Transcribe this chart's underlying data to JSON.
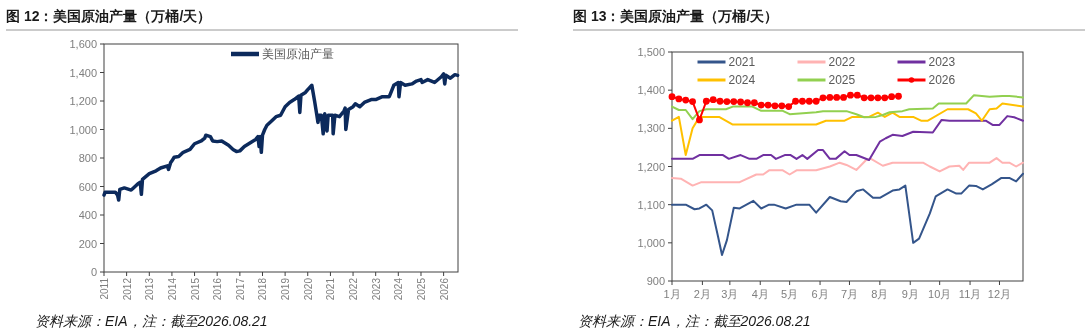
{
  "chart_data": [
    {
      "type": "line",
      "title": "图 12：美国原油产量（万桶/天）",
      "annotations": [
        "资料来源：EIA，注：截至2026.08.21"
      ],
      "legend": "top",
      "xlim": [
        "2011-01-01",
        "2026-08-21"
      ],
      "ylim": [
        0,
        1600
      ],
      "xticks": [
        {
          "value": "2011-01-01",
          "label": "2011"
        },
        {
          "value": "2012-01-01",
          "label": "2012"
        },
        {
          "value": "2013-01-01",
          "label": "2013"
        },
        {
          "value": "2014-01-01",
          "label": "2014"
        },
        {
          "value": "2015-01-01",
          "label": "2015"
        },
        {
          "value": "2016-01-01",
          "label": "2016"
        },
        {
          "value": "2017-01-01",
          "label": "2017"
        },
        {
          "value": "2018-01-01",
          "label": "2018"
        },
        {
          "value": "2019-01-01",
          "label": "2019"
        },
        {
          "value": "2020-01-01",
          "label": "2020"
        },
        {
          "value": "2021-01-01",
          "label": "2021"
        },
        {
          "value": "2022-01-01",
          "label": "2022"
        },
        {
          "value": "2023-01-01",
          "label": "2023"
        },
        {
          "value": "2024-01-01",
          "label": "2024"
        },
        {
          "value": "2025-01-01",
          "label": "2025"
        },
        {
          "value": "2026-01-01",
          "label": "2026"
        }
      ],
      "yticks": [
        0,
        200,
        400,
        600,
        800,
        {
          "value": 1000,
          "label": "1,000"
        },
        {
          "value": 1200,
          "label": "1,200"
        },
        {
          "value": 1400,
          "label": "1,400"
        },
        {
          "value": 1600,
          "label": "1,600"
        }
      ],
      "series": [
        {
          "name": "美国原油产量",
          "color": "#0c2a5c",
          "x": [
            "2011-01-01",
            "2011-01-19",
            "2011-07-02",
            "2011-08-08",
            "2011-08-26",
            "2011-09-13",
            "2011-11-25",
            "2012-03-14",
            "2012-04-20",
            "2012-07-02",
            "2012-08-08",
            "2012-08-26",
            "2012-09-13",
            "2013-01-01",
            "2013-04-20",
            "2013-07-02",
            "2013-10-20",
            "2013-11-07",
            "2013-12-13",
            "2014-01-01",
            "2014-02-06",
            "2014-04-20",
            "2014-07-02",
            "2014-10-20",
            "2015-01-01",
            "2015-04-20",
            "2015-06-14",
            "2015-07-02",
            "2015-09-13",
            "2015-10-20",
            "2016-01-01",
            "2016-03-14",
            "2016-07-02",
            "2016-09-13",
            "2016-11-07",
            "2017-01-01",
            "2017-03-14",
            "2017-07-02",
            "2017-09-13",
            "2017-10-20",
            "2017-11-07",
            "2017-11-25",
            "2017-12-13",
            "2018-01-01",
            "2018-02-06",
            "2018-03-14",
            "2018-05-27",
            "2018-08-08",
            "2018-10-20",
            "2019-01-01",
            "2019-03-14",
            "2019-05-27",
            "2019-08-08",
            "2019-08-26",
            "2019-09-13",
            "2019-11-25",
            "2020-01-01",
            "2020-03-07",
            "2020-04-20",
            "2020-05-27",
            "2020-06-14",
            "2020-07-02",
            "2020-08-08",
            "2020-09-06",
            "2020-10-01",
            "2020-11-07",
            "2020-11-25",
            "2021-01-01",
            "2021-02-06",
            "2021-02-14",
            "2021-03-14",
            "2021-05-27",
            "2021-08-08",
            "2021-08-26",
            "2021-09-06",
            "2021-10-20",
            "2022-01-01",
            "2022-02-06",
            "2022-04-20",
            "2022-07-02",
            "2022-10-20",
            "2023-01-01",
            "2023-04-20",
            "2023-08-08",
            "2023-09-13",
            "2023-10-20",
            "2024-01-01",
            "2024-01-12",
            "2024-02-06",
            "2024-04-20",
            "2024-08-08",
            "2024-10-20",
            "2025-01-01",
            "2025-01-19",
            "2025-04-20",
            "2025-08-08",
            "2025-11-25",
            "2026-01-01",
            "2026-01-19",
            "2026-02-06",
            "2026-04-20",
            "2026-07-02",
            "2026-08-15"
          ],
          "values": [
            540,
            560,
            560,
            540,
            505,
            580,
            590,
            575,
            590,
            620,
            630,
            545,
            650,
            690,
            710,
            730,
            745,
            720,
            770,
            780,
            805,
            810,
            840,
            860,
            900,
            920,
            940,
            960,
            950,
            920,
            915,
            920,
            890,
            860,
            845,
            850,
            880,
            910,
            930,
            950,
            880,
            950,
            840,
            960,
            1000,
            1030,
            1060,
            1090,
            1100,
            1160,
            1190,
            1210,
            1235,
            1120,
            1240,
            1260,
            1280,
            1310,
            1200,
            1100,
            1050,
            1100,
            1100,
            970,
            1110,
            990,
            1100,
            1100,
            1100,
            970,
            1100,
            1090,
            1130,
            1150,
            1000,
            1140,
            1160,
            1180,
            1160,
            1190,
            1210,
            1210,
            1230,
            1230,
            1270,
            1310,
            1330,
            1230,
            1330,
            1310,
            1320,
            1340,
            1350,
            1330,
            1350,
            1330,
            1370,
            1390,
            1320,
            1380,
            1360,
            1385,
            1380
          ]
        }
      ]
    },
    {
      "type": "line",
      "title": "图 13：美国原油产量（万桶/天）",
      "annotations": [
        "资料来源：EIA，注：截至2026.08.21"
      ],
      "legend": "top",
      "xlim": [
        "--01-01",
        "--12-25"
      ],
      "ylim": [
        900,
        1500
      ],
      "xticks": [
        {
          "value": "--01-01",
          "label": "1月"
        },
        {
          "value": "--02-01",
          "label": "2月"
        },
        {
          "value": "--03-01",
          "label": "3月"
        },
        {
          "value": "--04-01",
          "label": "4月"
        },
        {
          "value": "--05-01",
          "label": "5月"
        },
        {
          "value": "--06-01",
          "label": "6月"
        },
        {
          "value": "--07-01",
          "label": "7月"
        },
        {
          "value": "--08-01",
          "label": "8月"
        },
        {
          "value": "--09-01",
          "label": "9月"
        },
        {
          "value": "--10-01",
          "label": "10月"
        },
        {
          "value": "--11-01",
          "label": "11月"
        },
        {
          "value": "--12-01",
          "label": "12月"
        }
      ],
      "yticks": [
        900,
        {
          "value": 1000,
          "label": "1,000"
        },
        {
          "value": 1100,
          "label": "1,100"
        },
        {
          "value": 1200,
          "label": "1,200"
        },
        {
          "value": 1300,
          "label": "1,300"
        },
        {
          "value": 1400,
          "label": "1,400"
        },
        {
          "value": 1500,
          "label": "1,500"
        }
      ],
      "series": [
        {
          "name": "2021",
          "color": "#34558b",
          "x": [
            "--01-01",
            "--01-15",
            "--01-24",
            "--01-29",
            "--02-05",
            "--02-11",
            "--02-17",
            "--02-21",
            "--02-26",
            "--03-05",
            "--03-11",
            "--03-25",
            "--04-02",
            "--04-10",
            "--04-15",
            "--04-27",
            "--05-08",
            "--05-21",
            "--05-28",
            "--06-11",
            "--06-22",
            "--06-28",
            "--07-08",
            "--07-15",
            "--07-25",
            "--08-01",
            "--08-14",
            "--08-21",
            "--08-27",
            "--09-04",
            "--09-10",
            "--09-21",
            "--09-27",
            "--10-09",
            "--10-18",
            "--10-23",
            "--10-31",
            "--11-07",
            "--11-14",
            "--11-23",
            "--12-03",
            "--12-11",
            "--12-18",
            "--12-25"
          ],
          "values": [
            1100,
            1100,
            1088,
            1090,
            1100,
            1085,
            1016,
            968,
            1007,
            1092,
            1090,
            1110,
            1090,
            1100,
            1100,
            1090,
            1100,
            1100,
            1079,
            1120,
            1109,
            1107,
            1135,
            1140,
            1118,
            1118,
            1137,
            1140,
            1150,
            1000,
            1011,
            1077,
            1122,
            1140,
            1129,
            1129,
            1150,
            1149,
            1140,
            1153,
            1170,
            1170,
            1161,
            1181
          ]
        },
        {
          "name": "2022",
          "color": "#ffb3b3",
          "x": [
            "--01-01",
            "--01-10",
            "--01-22",
            "--01-31",
            "--03-11",
            "--03-28",
            "--04-04",
            "--04-10",
            "--04-24",
            "--05-01",
            "--05-08",
            "--05-28",
            "--06-11",
            "--06-21",
            "--06-28",
            "--07-08",
            "--07-18",
            "--07-23",
            "--08-04",
            "--08-14",
            "--09-14",
            "--09-21",
            "--10-01",
            "--10-11",
            "--10-21",
            "--10-25",
            "--10-31",
            "--11-21",
            "--11-28",
            "--12-04",
            "--12-11",
            "--12-18",
            "--12-25"
          ],
          "values": [
            1170,
            1168,
            1150,
            1159,
            1159,
            1179,
            1179,
            1190,
            1190,
            1179,
            1190,
            1190,
            1200,
            1210,
            1204,
            1191,
            1217,
            1220,
            1202,
            1210,
            1210,
            1200,
            1187,
            1200,
            1202,
            1191,
            1210,
            1210,
            1222,
            1210,
            1210,
            1200,
            1210
          ]
        },
        {
          "name": "2023",
          "color": "#7030a0",
          "x": [
            "--01-01",
            "--01-22",
            "--01-29",
            "--02-22",
            "--02-28",
            "--03-12",
            "--03-21",
            "--03-28",
            "--04-04",
            "--04-12",
            "--04-17",
            "--04-26",
            "--05-02",
            "--05-08",
            "--05-14",
            "--05-19",
            "--05-30",
            "--06-04",
            "--06-11",
            "--06-17",
            "--06-26",
            "--07-01",
            "--07-08",
            "--07-21",
            "--08-01",
            "--08-07",
            "--08-14",
            "--08-24",
            "--09-04",
            "--09-24",
            "--10-03",
            "--10-11",
            "--11-17",
            "--11-24",
            "--12-01",
            "--12-09",
            "--12-16",
            "--12-25"
          ],
          "values": [
            1220,
            1220,
            1230,
            1230,
            1220,
            1230,
            1220,
            1220,
            1230,
            1230,
            1220,
            1230,
            1230,
            1220,
            1230,
            1220,
            1243,
            1243,
            1220,
            1220,
            1240,
            1230,
            1230,
            1217,
            1265,
            1274,
            1283,
            1280,
            1291,
            1289,
            1322,
            1320,
            1320,
            1309,
            1309,
            1332,
            1329,
            1320
          ]
        },
        {
          "name": "2024",
          "color": "#ffc000",
          "x": [
            "--01-01",
            "--01-08",
            "--01-15",
            "--01-22",
            "--01-29",
            "--02-18",
            "--03-04",
            "--05-28",
            "--06-07",
            "--06-26",
            "--07-04",
            "--07-21",
            "--07-30",
            "--08-06",
            "--08-14",
            "--08-21",
            "--09-04",
            "--09-12",
            "--09-19",
            "--10-09",
            "--10-30",
            "--11-07",
            "--11-13",
            "--11-21",
            "--11-28",
            "--12-04",
            "--12-25"
          ],
          "values": [
            1320,
            1330,
            1230,
            1300,
            1330,
            1330,
            1310,
            1310,
            1320,
            1320,
            1330,
            1330,
            1341,
            1330,
            1341,
            1330,
            1330,
            1320,
            1320,
            1350,
            1350,
            1339,
            1320,
            1350,
            1352,
            1365,
            1357
          ]
        },
        {
          "name": "2025",
          "color": "#92d050",
          "x": [
            "--01-01",
            "--01-08",
            "--01-15",
            "--01-22",
            "--01-29",
            "--02-05",
            "--02-25",
            "--03-04",
            "--03-24",
            "--04-02",
            "--04-24",
            "--05-01",
            "--05-28",
            "--06-04",
            "--06-28",
            "--07-08",
            "--07-16",
            "--07-28",
            "--08-04",
            "--08-11",
            "--08-24",
            "--08-31",
            "--09-24",
            "--09-30",
            "--10-28",
            "--11-05",
            "--11-21",
            "--12-04",
            "--12-11",
            "--12-25"
          ],
          "values": [
            1357,
            1348,
            1348,
            1324,
            1345,
            1350,
            1350,
            1357,
            1357,
            1346,
            1346,
            1337,
            1342,
            1345,
            1345,
            1337,
            1329,
            1330,
            1335,
            1342,
            1345,
            1350,
            1352,
            1365,
            1365,
            1387,
            1383,
            1385,
            1385,
            1381
          ]
        },
        {
          "name": "2026",
          "color": "#ff0000",
          "marker": "circle",
          "x": [
            "--01-01",
            "--01-08",
            "--01-15",
            "--01-22",
            "--01-29",
            "--02-05",
            "--02-12",
            "--02-19",
            "--02-26",
            "--03-05",
            "--03-12",
            "--03-19",
            "--03-26",
            "--04-02",
            "--04-09",
            "--04-16",
            "--04-23",
            "--04-30",
            "--05-07",
            "--05-14",
            "--05-21",
            "--05-28",
            "--06-04",
            "--06-11",
            "--06-18",
            "--06-25",
            "--07-02",
            "--07-09",
            "--07-16",
            "--07-23",
            "--07-30",
            "--08-06",
            "--08-13",
            "--08-20"
          ],
          "values": [
            1383,
            1377,
            1374,
            1370,
            1322,
            1371,
            1375,
            1371,
            1370,
            1370,
            1369,
            1367,
            1367,
            1361,
            1361,
            1359,
            1359,
            1357,
            1371,
            1371,
            1371,
            1371,
            1380,
            1381,
            1381,
            1381,
            1387,
            1387,
            1380,
            1380,
            1380,
            1380,
            1383,
            1384
          ]
        }
      ]
    }
  ]
}
